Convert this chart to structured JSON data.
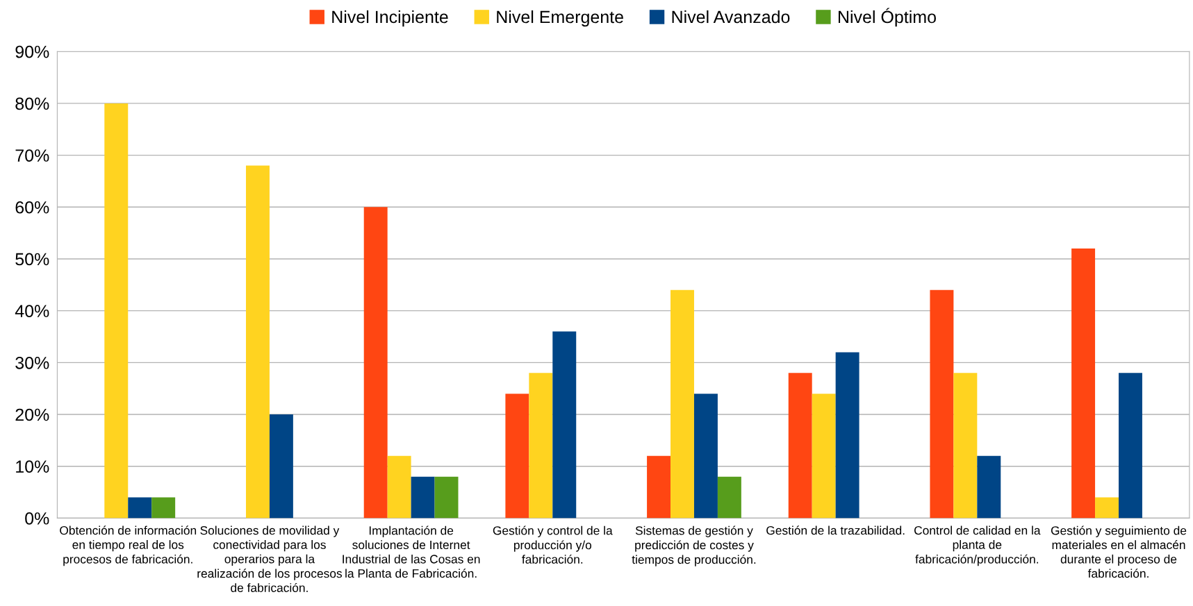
{
  "chart_data": {
    "type": "bar",
    "categories": [
      "Obtención de información\nen tiempo real de los\nprocesos de fabricación.",
      "Soluciones de movilidad y\nconectividad para los\noperarios para la\nrealización de los procesos\nde fabricación.",
      "Implantación de\nsoluciones de Internet\nIndustrial de las Cosas en\nla Planta de Fabricación.",
      "Gestión y control de la\nproducción y/o\nfabricación.",
      "Sistemas de gestión y\npredicción de costes y\ntiempos de producción.",
      "Gestión de la trazabilidad.",
      "Control de calidad en la\nplanta de\nfabricación/producción.",
      "Gestión y seguimiento de\nmateriales en el almacén\ndurante el proceso de\nfabricación."
    ],
    "series": [
      {
        "name": "Nivel Incipiente",
        "color": "#ff4612",
        "values": [
          0,
          0,
          60,
          24,
          12,
          28,
          44,
          52
        ]
      },
      {
        "name": "Nivel Emergente",
        "color": "#ffd320",
        "values": [
          80,
          68,
          12,
          28,
          44,
          24,
          28,
          4
        ]
      },
      {
        "name": "Nivel Avanzado",
        "color": "#004586",
        "values": [
          4,
          20,
          8,
          36,
          24,
          32,
          12,
          28
        ]
      },
      {
        "name": "Nivel Óptimo",
        "color": "#579d1c",
        "values": [
          4,
          0,
          8,
          0,
          8,
          0,
          0,
          0
        ]
      }
    ],
    "ylim": [
      0,
      90
    ],
    "yticks": [
      {
        "value": 0,
        "label": "0%"
      },
      {
        "value": 10,
        "label": "10%"
      },
      {
        "value": 20,
        "label": "20%"
      },
      {
        "value": 30,
        "label": "30%"
      },
      {
        "value": 40,
        "label": "40%"
      },
      {
        "value": 50,
        "label": "50%"
      },
      {
        "value": 60,
        "label": "60%"
      },
      {
        "value": 70,
        "label": "70%"
      },
      {
        "value": 80,
        "label": "80%"
      },
      {
        "value": 90,
        "label": "90%"
      }
    ],
    "grid": "y",
    "legend": "top"
  }
}
